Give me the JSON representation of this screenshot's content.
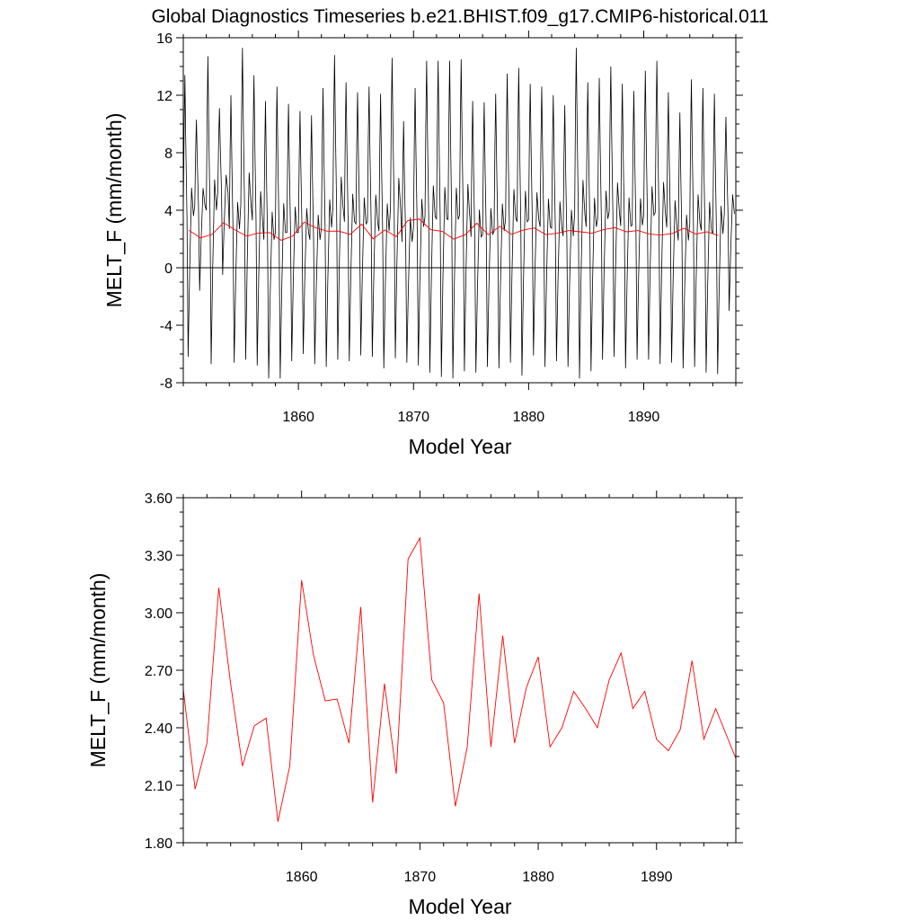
{
  "title": "Global Diagnostics Timeseries b.e21.BHIST.f09_g17.CMIP6-historical.011",
  "colors": {
    "monthly": "#000000",
    "annual": "#ff0000",
    "zero_line": "#000000"
  },
  "chart_data": [
    {
      "type": "line",
      "xlabel": "Model Year",
      "ylabel": "MELT_F (mm/month)",
      "xlim": [
        1850,
        1898
      ],
      "ylim": [
        -8,
        16
      ],
      "x_ticks": [
        1860,
        1870,
        1880,
        1890
      ],
      "x_tick_labels": [
        "1860",
        "1870",
        "1880",
        "1890"
      ],
      "y_ticks": [
        -8,
        -4,
        0,
        4,
        8,
        12,
        16
      ],
      "y_tick_labels": [
        "-8",
        "-4",
        "0",
        "4",
        "8",
        "12",
        "16"
      ],
      "zero_line": true,
      "grid": false,
      "monthly_cycle": {
        "description_values": "monthly values: per-year maximum and minimum",
        "year_start": 1850,
        "max": [
          13.4,
          10.3,
          14.7,
          11.1,
          12.0,
          15.3,
          13.4,
          11.6,
          12.6,
          11.4,
          10.9,
          10.6,
          12.5,
          14.8,
          12.9,
          12.2,
          12.6,
          12.1,
          14.6,
          10.2,
          12.5,
          14.4,
          14.4,
          14.4,
          14.5,
          11.6,
          11.5,
          12.1,
          13.5,
          13.9,
          12.8,
          12.6,
          12.0,
          11.3,
          15.3,
          12.9,
          13.2,
          14.0,
          12.8,
          12.3,
          13.7,
          14.4,
          12.2,
          10.8,
          13.1,
          12.5,
          12.1,
          10.5
        ],
        "min": [
          -6.2,
          -1.6,
          -6.7,
          -0.5,
          -6.6,
          -6.4,
          -6.8,
          -7.7,
          -7.7,
          -6.5,
          -6.0,
          -6.7,
          -6.9,
          -6.4,
          -6.5,
          -6.1,
          -6.2,
          -7.0,
          -6.3,
          -6.6,
          -6.8,
          -7.3,
          -7.6,
          -7.7,
          -7.2,
          -7.3,
          -6.9,
          -7.0,
          -6.6,
          -7.5,
          -6.1,
          -6.9,
          -6.5,
          -6.9,
          -7.7,
          -7.2,
          -6.4,
          -6.2,
          -7.0,
          -6.4,
          -6.4,
          -6.7,
          -6.6,
          -7.0,
          -6.9,
          -7.3,
          -7.4,
          -3.0
        ]
      },
      "series": [
        {
          "x": [
            1850.5,
            1851.5,
            1852.5,
            1853.5,
            1854.5,
            1855.5,
            1856.5,
            1857.5,
            1858.5,
            1859.5,
            1860.5,
            1861.5,
            1862.5,
            1863.5,
            1864.5,
            1865.5,
            1866.5,
            1867.5,
            1868.5,
            1869.5,
            1870.5,
            1871.5,
            1872.5,
            1873.5,
            1874.5,
            1875.5,
            1876.5,
            1877.5,
            1878.5,
            1879.5,
            1880.5,
            1881.5,
            1882.5,
            1883.5,
            1884.5,
            1885.5,
            1886.5,
            1887.5,
            1888.5,
            1889.5,
            1890.5,
            1891.5,
            1892.5,
            1893.5,
            1894.5,
            1895.5,
            1896.5
          ],
          "values": [
            2.6,
            2.08,
            2.32,
            3.13,
            2.63,
            2.2,
            2.41,
            2.45,
            1.91,
            2.2,
            3.17,
            2.78,
            2.54,
            2.55,
            2.32,
            3.03,
            2.01,
            2.63,
            2.16,
            3.28,
            3.39,
            2.65,
            2.53,
            1.99,
            2.3,
            3.1,
            2.3,
            2.88,
            2.32,
            2.61,
            2.77,
            2.3,
            2.4,
            2.59,
            2.5,
            2.4,
            2.65,
            2.79,
            2.5,
            2.59,
            2.34,
            2.28,
            2.39,
            2.75,
            2.34,
            2.5,
            2.24
          ]
        }
      ]
    },
    {
      "type": "line",
      "xlabel": "Model Year",
      "ylabel": "MELT_F (mm/month)",
      "xlim": [
        1850,
        1896.7
      ],
      "ylim": [
        1.8,
        3.6
      ],
      "x_ticks": [
        1860,
        1870,
        1880,
        1890
      ],
      "x_tick_labels": [
        "1860",
        "1870",
        "1880",
        "1890"
      ],
      "y_ticks": [
        1.8,
        2.1,
        2.4,
        2.7,
        3.0,
        3.3,
        3.6
      ],
      "y_tick_labels": [
        "1.80",
        "2.10",
        "2.40",
        "2.70",
        "3.00",
        "3.30",
        "3.60"
      ],
      "grid": false,
      "series": [
        {
          "x": [
            1850.0,
            1851.0,
            1852.0,
            1853.0,
            1854.0,
            1855.0,
            1856.0,
            1857.0,
            1858.0,
            1859.0,
            1860.0,
            1861.0,
            1862.0,
            1863.0,
            1864.0,
            1865.0,
            1866.0,
            1867.0,
            1868.0,
            1869.0,
            1870.0,
            1871.0,
            1872.0,
            1873.0,
            1874.0,
            1875.0,
            1876.0,
            1877.0,
            1878.0,
            1879.0,
            1880.0,
            1881.0,
            1882.0,
            1883.0,
            1884.0,
            1885.0,
            1886.0,
            1887.0,
            1888.0,
            1889.0,
            1890.0,
            1891.0,
            1892.0,
            1893.0,
            1894.0,
            1895.0,
            1896.7
          ],
          "values": [
            2.6,
            2.08,
            2.32,
            3.13,
            2.63,
            2.2,
            2.41,
            2.45,
            1.91,
            2.2,
            3.17,
            2.78,
            2.54,
            2.55,
            2.32,
            3.03,
            2.01,
            2.63,
            2.16,
            3.28,
            3.39,
            2.65,
            2.53,
            1.99,
            2.3,
            3.1,
            2.3,
            2.88,
            2.32,
            2.61,
            2.77,
            2.3,
            2.4,
            2.59,
            2.5,
            2.4,
            2.65,
            2.79,
            2.5,
            2.59,
            2.34,
            2.28,
            2.39,
            2.75,
            2.34,
            2.5,
            2.24
          ]
        }
      ]
    }
  ]
}
